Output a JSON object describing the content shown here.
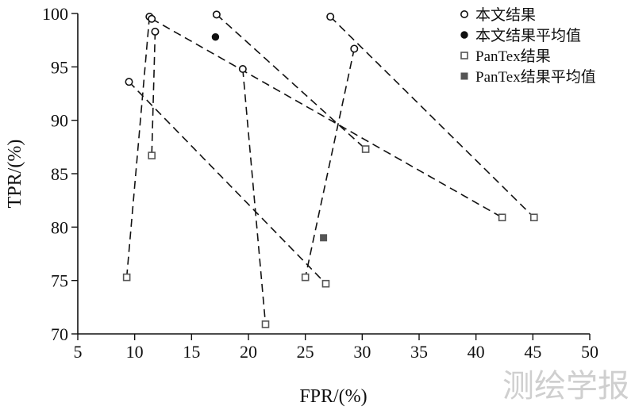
{
  "chart_data": {
    "type": "scatter",
    "title": "",
    "xlabel": "FPR/(%)",
    "ylabel": "TPR/(%)",
    "xlim": [
      5,
      50
    ],
    "ylim": [
      70,
      100
    ],
    "xticks": [
      5,
      10,
      15,
      20,
      25,
      30,
      35,
      40,
      45,
      50
    ],
    "yticks": [
      70,
      75,
      80,
      85,
      90,
      95,
      100
    ],
    "grid": false,
    "legend_position": "top-right",
    "series": [
      {
        "name": "本文结果",
        "marker": "open-circle",
        "points": [
          [
            9.5,
            93.6
          ],
          [
            11.3,
            99.7
          ],
          [
            11.8,
            98.3
          ],
          [
            11.5,
            99.5
          ],
          [
            17.2,
            99.9
          ],
          [
            19.5,
            94.8
          ],
          [
            27.2,
            99.7
          ],
          [
            29.3,
            96.7
          ]
        ]
      },
      {
        "name": "本文结果平均值",
        "marker": "filled-circle",
        "points": [
          [
            17.1,
            97.8
          ]
        ]
      },
      {
        "name": "PanTex结果",
        "marker": "open-square",
        "points": [
          [
            9.3,
            75.3
          ],
          [
            11.5,
            86.7
          ],
          [
            21.5,
            70.9
          ],
          [
            25.0,
            75.3
          ],
          [
            26.8,
            74.7
          ],
          [
            30.3,
            87.3
          ],
          [
            42.3,
            80.9
          ],
          [
            45.1,
            80.9
          ]
        ]
      },
      {
        "name": "PanTex结果平均值",
        "marker": "filled-square",
        "points": [
          [
            26.6,
            79.0
          ]
        ]
      }
    ],
    "connectors": [
      [
        [
          9.5,
          93.6
        ],
        [
          26.8,
          74.7
        ]
      ],
      [
        [
          9.3,
          75.3
        ],
        [
          11.3,
          99.7
        ]
      ],
      [
        [
          11.8,
          98.3
        ],
        [
          11.5,
          86.7
        ]
      ],
      [
        [
          11.5,
          99.5
        ],
        [
          42.3,
          80.9
        ]
      ],
      [
        [
          17.2,
          99.9
        ],
        [
          30.3,
          87.3
        ]
      ],
      [
        [
          19.5,
          94.8
        ],
        [
          21.5,
          70.9
        ]
      ],
      [
        [
          27.2,
          99.7
        ],
        [
          45.1,
          80.9
        ]
      ],
      [
        [
          29.3,
          96.7
        ],
        [
          25.0,
          75.3
        ]
      ]
    ]
  },
  "watermark": "测绘学报"
}
